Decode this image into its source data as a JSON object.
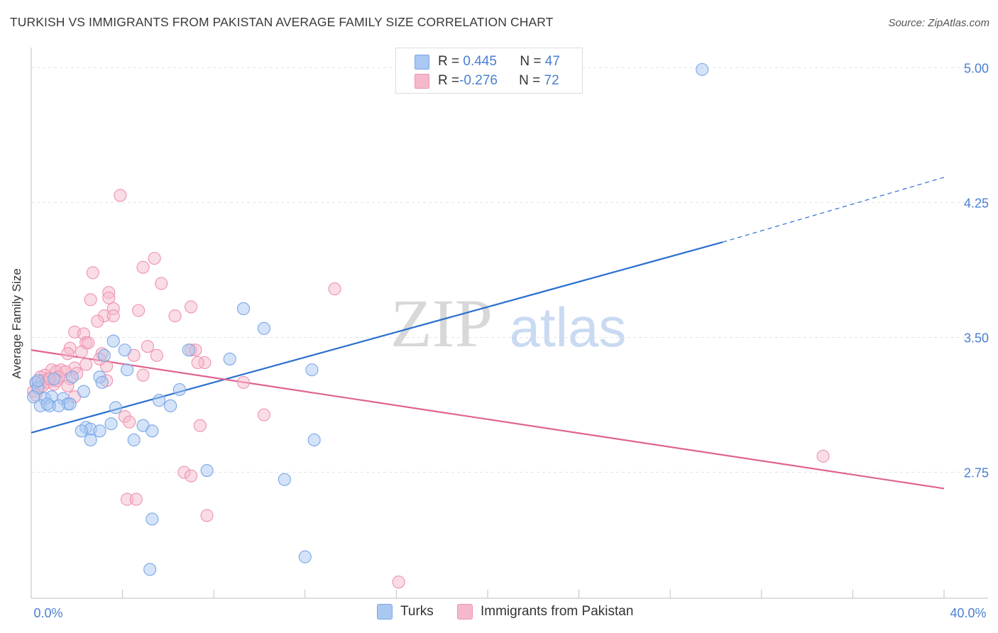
{
  "title": "TURKISH VS IMMIGRANTS FROM PAKISTAN AVERAGE FAMILY SIZE CORRELATION CHART",
  "source": "Source: ZipAtlas.com",
  "watermark": {
    "zip": "ZIP",
    "atlas": "atlas"
  },
  "legend": {
    "turks": {
      "r_label": "R = ",
      "r_value": "0.445",
      "n_label": "N = ",
      "n_value": "47"
    },
    "pakistan": {
      "r_label": "R = ",
      "r_value": "-0.276",
      "n_label": "N = ",
      "n_value": "72"
    }
  },
  "bottom_legend": {
    "turks": "Turks",
    "pakistan": "Immigrants from Pakistan"
  },
  "colors": {
    "turks_fill": "#a9c8f2",
    "turks_stroke": "#7aa7e6",
    "turks_line": "#2a6fce",
    "pak_fill": "#f6b9cc",
    "pak_stroke": "#ee93b0",
    "pak_line": "#e06391",
    "axis_label": "#4a7fd0",
    "grid": "#e3e3e3"
  },
  "chart_data": {
    "type": "scatter",
    "title": "TURKISH VS IMMIGRANTS FROM PAKISTAN AVERAGE FAMILY SIZE CORRELATION CHART",
    "xlabel": "",
    "ylabel": "Average Family Size",
    "xlim": [
      0,
      40
    ],
    "ylim": [
      2.05,
      5.1
    ],
    "x_tick_labels": [
      "0.0%",
      "40.0%"
    ],
    "y_ticks": [
      2.75,
      3.5,
      4.25,
      5.0
    ],
    "y_tick_labels": [
      "2.75",
      "3.50",
      "4.25",
      "5.00"
    ],
    "grid": true,
    "legend_position": "top-center",
    "series": [
      {
        "name": "Turks",
        "r": 0.445,
        "n": 47,
        "trend": {
          "x0": 0.0,
          "y0": 2.97,
          "x1": 30.3,
          "y1": 4.03,
          "dashed_to_x": 40.0,
          "dashed_to_y": 4.39
        },
        "points": [
          [
            29.4,
            4.99
          ],
          [
            9.3,
            3.66
          ],
          [
            10.2,
            3.55
          ],
          [
            3.6,
            3.48
          ],
          [
            4.1,
            3.43
          ],
          [
            6.9,
            3.43
          ],
          [
            3.2,
            3.4
          ],
          [
            8.7,
            3.38
          ],
          [
            12.3,
            3.32
          ],
          [
            4.2,
            3.32
          ],
          [
            1.8,
            3.28
          ],
          [
            3.0,
            3.28
          ],
          [
            1.0,
            3.27
          ],
          [
            2.3,
            3.2
          ],
          [
            3.1,
            3.25
          ],
          [
            6.5,
            3.21
          ],
          [
            0.2,
            3.25
          ],
          [
            0.3,
            3.22
          ],
          [
            0.6,
            3.16
          ],
          [
            0.9,
            3.17
          ],
          [
            1.4,
            3.16
          ],
          [
            1.6,
            3.13
          ],
          [
            5.6,
            3.15
          ],
          [
            6.1,
            3.12
          ],
          [
            0.4,
            3.12
          ],
          [
            1.2,
            3.12
          ],
          [
            0.8,
            3.12
          ],
          [
            0.7,
            3.13
          ],
          [
            1.7,
            3.13
          ],
          [
            2.4,
            3.0
          ],
          [
            3.5,
            3.02
          ],
          [
            4.9,
            3.01
          ],
          [
            2.6,
            2.99
          ],
          [
            3.0,
            2.98
          ],
          [
            5.3,
            2.98
          ],
          [
            2.2,
            2.98
          ],
          [
            12.4,
            2.93
          ],
          [
            2.6,
            2.93
          ],
          [
            4.5,
            2.93
          ],
          [
            7.7,
            2.76
          ],
          [
            11.1,
            2.71
          ],
          [
            5.3,
            2.49
          ],
          [
            12.0,
            2.28
          ],
          [
            5.2,
            2.21
          ],
          [
            0.1,
            3.17
          ],
          [
            0.3,
            3.26
          ],
          [
            3.7,
            3.11
          ]
        ]
      },
      {
        "name": "Immigrants from Pakistan",
        "r": -0.276,
        "n": 72,
        "trend": {
          "x0": 0.0,
          "y0": 3.43,
          "x1": 40.0,
          "y1": 2.66
        },
        "points": [
          [
            3.9,
            4.29
          ],
          [
            5.4,
            3.94
          ],
          [
            4.9,
            3.89
          ],
          [
            2.7,
            3.86
          ],
          [
            5.7,
            3.8
          ],
          [
            13.3,
            3.77
          ],
          [
            3.4,
            3.75
          ],
          [
            3.4,
            3.72
          ],
          [
            2.6,
            3.71
          ],
          [
            7.0,
            3.67
          ],
          [
            3.6,
            3.66
          ],
          [
            4.7,
            3.65
          ],
          [
            3.2,
            3.62
          ],
          [
            3.6,
            3.62
          ],
          [
            6.3,
            3.62
          ],
          [
            2.9,
            3.59
          ],
          [
            1.9,
            3.53
          ],
          [
            2.3,
            3.52
          ],
          [
            2.4,
            3.47
          ],
          [
            2.5,
            3.47
          ],
          [
            5.1,
            3.45
          ],
          [
            1.7,
            3.44
          ],
          [
            7.0,
            3.43
          ],
          [
            7.2,
            3.43
          ],
          [
            2.2,
            3.42
          ],
          [
            1.6,
            3.41
          ],
          [
            3.1,
            3.41
          ],
          [
            4.5,
            3.4
          ],
          [
            5.5,
            3.4
          ],
          [
            2.4,
            3.35
          ],
          [
            7.6,
            3.36
          ],
          [
            7.3,
            3.36
          ],
          [
            3.3,
            3.34
          ],
          [
            1.9,
            3.33
          ],
          [
            0.9,
            3.32
          ],
          [
            1.3,
            3.32
          ],
          [
            1.1,
            3.31
          ],
          [
            1.5,
            3.31
          ],
          [
            4.9,
            3.29
          ],
          [
            0.6,
            3.29
          ],
          [
            0.4,
            3.28
          ],
          [
            1.2,
            3.28
          ],
          [
            0.8,
            3.27
          ],
          [
            1.7,
            3.27
          ],
          [
            9.3,
            3.25
          ],
          [
            0.5,
            3.26
          ],
          [
            0.2,
            3.25
          ],
          [
            0.4,
            3.24
          ],
          [
            0.7,
            3.25
          ],
          [
            1.0,
            3.24
          ],
          [
            3.3,
            3.26
          ],
          [
            0.3,
            3.22
          ],
          [
            1.6,
            3.23
          ],
          [
            0.1,
            3.2
          ],
          [
            0.2,
            3.18
          ],
          [
            1.9,
            3.17
          ],
          [
            1.1,
            3.26
          ],
          [
            0.5,
            3.23
          ],
          [
            10.2,
            3.07
          ],
          [
            4.1,
            3.06
          ],
          [
            7.4,
            3.01
          ],
          [
            4.3,
            3.03
          ],
          [
            34.7,
            2.84
          ],
          [
            6.7,
            2.75
          ],
          [
            7.0,
            2.73
          ],
          [
            4.2,
            2.6
          ],
          [
            4.6,
            2.6
          ],
          [
            7.7,
            2.51
          ],
          [
            16.1,
            2.14
          ],
          [
            0.8,
            3.27
          ],
          [
            2.0,
            3.3
          ],
          [
            3.0,
            3.38
          ]
        ]
      }
    ]
  }
}
